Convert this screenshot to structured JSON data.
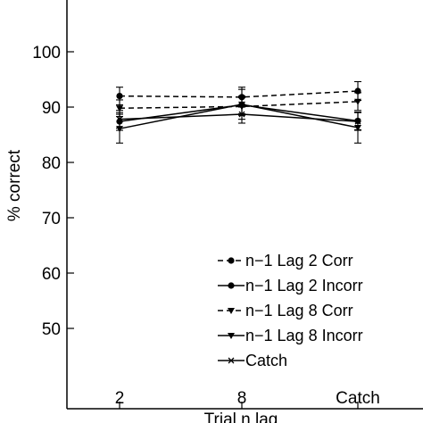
{
  "chart_data": {
    "type": "line",
    "xlabel": "Trial n lag",
    "ylabel": "% correct",
    "categories": [
      "2",
      "8",
      "Catch"
    ],
    "yticks": [
      50,
      60,
      70,
      80,
      90,
      100
    ],
    "ylim": [
      41,
      113
    ],
    "grid": false,
    "legend_position": "bottom-right",
    "series": [
      {
        "name": "n−1 Lag 2 Corr",
        "marker": "dot",
        "line_style": "dashed",
        "values": [
          92.0,
          91.8,
          92.9
        ],
        "errors": [
          1.6,
          1.8,
          1.7
        ]
      },
      {
        "name": "n−1 Lag 2 Incorr",
        "marker": "dot",
        "line_style": "solid",
        "values": [
          87.4,
          90.4,
          87.5
        ],
        "errors": [
          1.6,
          1.6,
          1.6
        ]
      },
      {
        "name": "n−1 Lag 8 Corr",
        "marker": "triangle",
        "line_style": "dashed",
        "values": [
          89.8,
          90.1,
          91.0
        ],
        "errors": [
          1.5,
          1.6,
          1.6
        ]
      },
      {
        "name": "n−1 Lag 8 Incorr",
        "marker": "triangle",
        "line_style": "solid",
        "values": [
          86.1,
          90.5,
          86.3
        ],
        "errors": [
          2.6,
          2.7,
          2.8
        ]
      },
      {
        "name": "Catch",
        "marker": "x",
        "line_style": "solid",
        "values": [
          87.8,
          88.7,
          87.4
        ],
        "errors": [
          1.6,
          1.6,
          1.6
        ]
      }
    ],
    "colors": {
      "lines": "#000000",
      "background": "#ffffff"
    }
  }
}
